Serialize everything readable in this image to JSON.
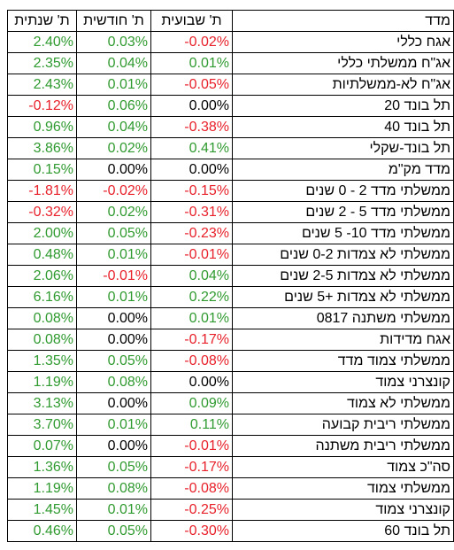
{
  "headers": {
    "annual": "ת' שנתית",
    "monthly": "ת' חודשית",
    "weekly": "ת' שבועית",
    "index": "מדד"
  },
  "rows": [
    {
      "name": "אגח כללי",
      "weekly": "-0.02%",
      "monthly": "0.03%",
      "annual": "2.40%"
    },
    {
      "name": "אג\"ח ממשלתי כללי",
      "weekly": "0.01%",
      "monthly": "0.04%",
      "annual": "2.35%"
    },
    {
      "name": "אג\"ח לא-ממשלתיות",
      "weekly": "-0.05%",
      "monthly": "0.01%",
      "annual": "2.43%"
    },
    {
      "name": "תל בונד 20",
      "weekly": "0.00%",
      "monthly": "0.06%",
      "annual": "-0.12%"
    },
    {
      "name": "תל בונד 40",
      "weekly": "-0.38%",
      "monthly": "0.04%",
      "annual": "0.96%"
    },
    {
      "name": "תל בונד-שקלי",
      "weekly": "0.41%",
      "monthly": "0.02%",
      "annual": "3.86%"
    },
    {
      "name": "מדד מק\"מ",
      "weekly": "0.00%",
      "monthly": "0.00%",
      "annual": "0.15%"
    },
    {
      "name": "ממשלתי מדד 2 - 0 שנים",
      "weekly": "-0.15%",
      "monthly": "-0.02%",
      "annual": "-1.81%"
    },
    {
      "name": "ממשלתי מדד 5 - 2 שנים",
      "weekly": "-0.31%",
      "monthly": "0.02%",
      "annual": "-0.32%"
    },
    {
      "name": "ממשלתי מדד 10- 5 שנים",
      "weekly": "-0.23%",
      "monthly": "0.05%",
      "annual": "2.00%"
    },
    {
      "name": "ממשלתי לא צמדות 0-2 שנים",
      "weekly": "-0.01%",
      "monthly": "0.01%",
      "annual": "0.48%"
    },
    {
      "name": "ממשלתי לא צמדות 2-5 שנים",
      "weekly": "0.04%",
      "monthly": "-0.01%",
      "annual": "2.06%"
    },
    {
      "name": "ממשלתי לא צמדות +5 שנים",
      "weekly": "0.22%",
      "monthly": "0.01%",
      "annual": "6.16%"
    },
    {
      "name": "ממשלתי משתנה 0817",
      "weekly": "0.01%",
      "monthly": "0.00%",
      "annual": "0.08%"
    },
    {
      "name": "אגח מדידות",
      "weekly": "-0.17%",
      "monthly": "0.00%",
      "annual": "0.08%"
    },
    {
      "name": "ממשלתי צמוד מדד",
      "weekly": "-0.08%",
      "monthly": "0.05%",
      "annual": "1.35%"
    },
    {
      "name": "קונצרני צמוד",
      "weekly": "0.00%",
      "monthly": "0.08%",
      "annual": "1.19%"
    },
    {
      "name": "ממשלתי לא צמוד",
      "weekly": "0.09%",
      "monthly": "0.00%",
      "annual": "3.13%"
    },
    {
      "name": "ממשלתי ריבית קבועה",
      "weekly": "0.11%",
      "monthly": "0.01%",
      "annual": "3.70%"
    },
    {
      "name": "ממשלתי ריבית משתנה",
      "weekly": "-0.01%",
      "monthly": "0.00%",
      "annual": "0.07%"
    },
    {
      "name": "סה\"כ צמוד",
      "weekly": "-0.17%",
      "monthly": "0.05%",
      "annual": "1.36%"
    },
    {
      "name": "ממשלתי צמוד",
      "weekly": "-0.08%",
      "monthly": "0.08%",
      "annual": "1.19%"
    },
    {
      "name": "קונצרני צמוד",
      "weekly": "-0.25%",
      "monthly": "0.01%",
      "annual": "1.45%"
    },
    {
      "name": "תל בונד 60",
      "weekly": "-0.30%",
      "monthly": "0.05%",
      "annual": "0.46%"
    }
  ],
  "colors": {
    "positive": "#2f9a2f",
    "negative": "#e8202a",
    "neutral": "#000000"
  }
}
